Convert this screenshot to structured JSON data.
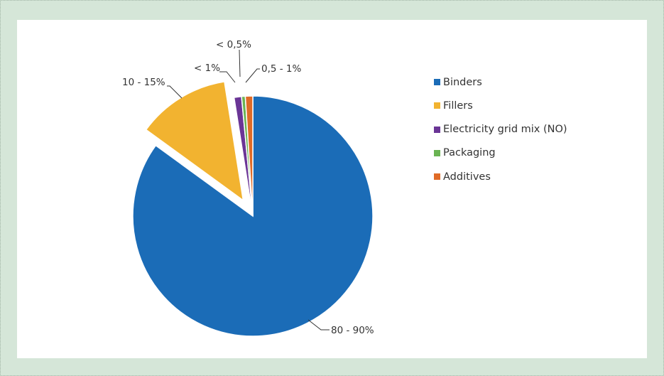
{
  "chart_data": {
    "type": "pie",
    "title": "",
    "slices": [
      {
        "name": "Binders",
        "value": 85,
        "label": "80 - 90%",
        "color": "#1b6cb7"
      },
      {
        "name": "Fillers",
        "value": 12.5,
        "label": "10 - 15%",
        "color": "#f2b330"
      },
      {
        "name": "Electricity grid mix (NO)",
        "value": 1,
        "label": "< 1%",
        "color": "#6a3596"
      },
      {
        "name": "Packaging",
        "value": 0.5,
        "label": "< 0,5%",
        "color": "#6ab353"
      },
      {
        "name": "Additives",
        "value": 1,
        "label": "0,5 - 1%",
        "color": "#e06b27"
      }
    ],
    "exploded": [
      "Fillers"
    ],
    "legend_position": "right"
  }
}
